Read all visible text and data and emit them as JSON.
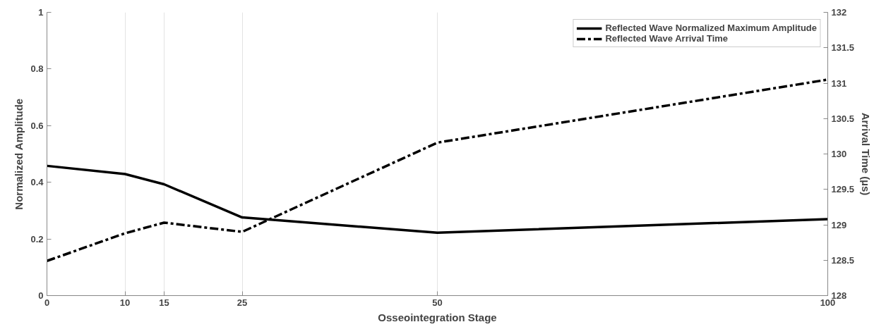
{
  "chart_data": {
    "type": "line",
    "xlabel": "Osseointegration Stage",
    "ylabel": "Normalized Amplitude",
    "y2label": "Arrival Time (µs)",
    "x": [
      0,
      10,
      15,
      25,
      50,
      100
    ],
    "series": [
      {
        "name": "Reflected Wave Normalized Maximum Amplitude",
        "color": "#000000",
        "values": [
          0.458,
          0.429,
          0.393,
          0.276,
          0.222,
          0.27
        ],
        "line_style": "solid"
      },
      {
        "name": "Reflected Wave Arrival Time",
        "color": "#000000",
        "values": [
          128.49,
          128.88,
          129.03,
          128.9,
          130.16,
          131.05
        ],
        "axis": "y2",
        "line_style": "dashed"
      }
    ],
    "xlim": [
      0,
      100
    ],
    "xticks": [
      0,
      10,
      15,
      25,
      50,
      100
    ],
    "ylim": [
      0,
      1
    ],
    "yticks": [
      0,
      0.2,
      0.4,
      0.6,
      0.8,
      1
    ],
    "y2lim": [
      128,
      132
    ],
    "y2ticks": [
      128,
      128.5,
      129,
      129.5,
      130,
      130.5,
      131,
      131.5,
      132
    ],
    "grid": "x",
    "legend": "top right",
    "marker": "none"
  }
}
